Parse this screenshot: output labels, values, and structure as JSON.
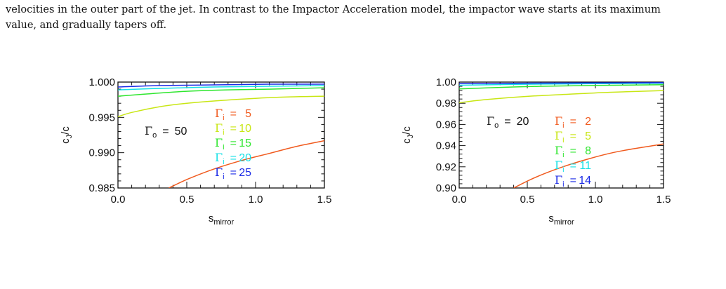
{
  "text": {
    "line1": "velocities in the outer part of the jet. In contrast to the Impactor Acceleration model, the impactor wave starts at its maximum",
    "line2": "value, and gradually tapers off."
  },
  "chart_data": [
    {
      "type": "line",
      "xlabel": "s",
      "xlabel_sub": "mirror",
      "ylabel": "c",
      "ylabel_sub": "J",
      "ylabel_suffix": "/c",
      "xlim": [
        0.0,
        1.5
      ],
      "ylim": [
        0.985,
        1.0
      ],
      "xticks": [
        "0.0",
        "0.5",
        "1.0",
        "1.5"
      ],
      "yticks": [
        "0.985",
        "0.990",
        "0.995",
        "1.000"
      ],
      "outer": {
        "symbol": "Γ",
        "sub": "o",
        "eq": "=",
        "value": "50"
      },
      "legend_symbol": "Γ",
      "legend_sub": "i",
      "legend_eq": "=",
      "series": [
        {
          "gamma_i": "5",
          "color": "#f05a1e",
          "x": [
            0.37,
            0.5,
            0.7,
            0.9,
            1.1,
            1.3,
            1.5
          ],
          "y": [
            0.985,
            0.9862,
            0.9877,
            0.9889,
            0.9899,
            0.9909,
            0.9917
          ]
        },
        {
          "gamma_i": "10",
          "color": "#c8e614",
          "x": [
            0.0,
            0.1,
            0.3,
            0.5,
            0.75,
            1.0,
            1.25,
            1.5
          ],
          "y": [
            0.9951,
            0.9957,
            0.9965,
            0.997,
            0.9974,
            0.9977,
            0.9979,
            0.998
          ]
        },
        {
          "gamma_i": "15",
          "color": "#2ee62e",
          "x": [
            0.0,
            0.2,
            0.5,
            0.8,
            1.1,
            1.5
          ],
          "y": [
            0.998,
            0.9983,
            0.9987,
            0.9989,
            0.999,
            0.9992
          ]
        },
        {
          "gamma_i": "20",
          "color": "#16e0e6",
          "x": [
            0.0,
            0.3,
            0.7,
            1.1,
            1.5
          ],
          "y": [
            0.9989,
            0.9991,
            0.9993,
            0.9994,
            0.9995
          ]
        },
        {
          "gamma_i": "25",
          "color": "#1a2ae6",
          "x": [
            0.0,
            0.3,
            0.7,
            1.1,
            1.5
          ],
          "y": [
            0.9993,
            0.9995,
            0.9996,
            0.9997,
            0.9997
          ]
        }
      ]
    },
    {
      "type": "line",
      "xlabel": "s",
      "xlabel_sub": "mirror",
      "ylabel": "c",
      "ylabel_sub": "J",
      "ylabel_suffix": "/c",
      "xlim": [
        0.0,
        1.5
      ],
      "ylim": [
        0.9,
        1.0
      ],
      "xticks": [
        "0.0",
        "0.5",
        "1.0",
        "1.5"
      ],
      "yticks": [
        "0.90",
        "0.92",
        "0.94",
        "0.96",
        "0.98",
        "1.00"
      ],
      "outer": {
        "symbol": "Γ",
        "sub": "o",
        "eq": "=",
        "value": "20"
      },
      "legend_symbol": "Γ",
      "legend_sub": "i",
      "legend_eq": "=",
      "series": [
        {
          "gamma_i": "2",
          "color": "#f05a1e",
          "x": [
            0.4,
            0.55,
            0.75,
            0.95,
            1.15,
            1.35,
            1.5
          ],
          "y": [
            0.9,
            0.9095,
            0.9195,
            0.9275,
            0.934,
            0.9385,
            0.9415
          ]
        },
        {
          "gamma_i": "5",
          "color": "#c8e614",
          "x": [
            0.0,
            0.2,
            0.5,
            0.8,
            1.1,
            1.5
          ],
          "y": [
            0.9805,
            0.9835,
            0.9865,
            0.9885,
            0.9903,
            0.992
          ]
        },
        {
          "gamma_i": "8",
          "color": "#2ee62e",
          "x": [
            0.0,
            0.3,
            0.6,
            1.0,
            1.5
          ],
          "y": [
            0.9935,
            0.995,
            0.996,
            0.9968,
            0.9975
          ]
        },
        {
          "gamma_i": "11",
          "color": "#16e0e6",
          "x": [
            0.0,
            0.4,
            0.8,
            1.2,
            1.5
          ],
          "y": [
            0.997,
            0.9978,
            0.9983,
            0.9986,
            0.9988
          ]
        },
        {
          "gamma_i": "14",
          "color": "#1a2ae6",
          "x": [
            0.0,
            0.4,
            0.8,
            1.2,
            1.5
          ],
          "y": [
            0.9985,
            0.9989,
            0.9991,
            0.9993,
            0.9994
          ]
        }
      ]
    }
  ]
}
